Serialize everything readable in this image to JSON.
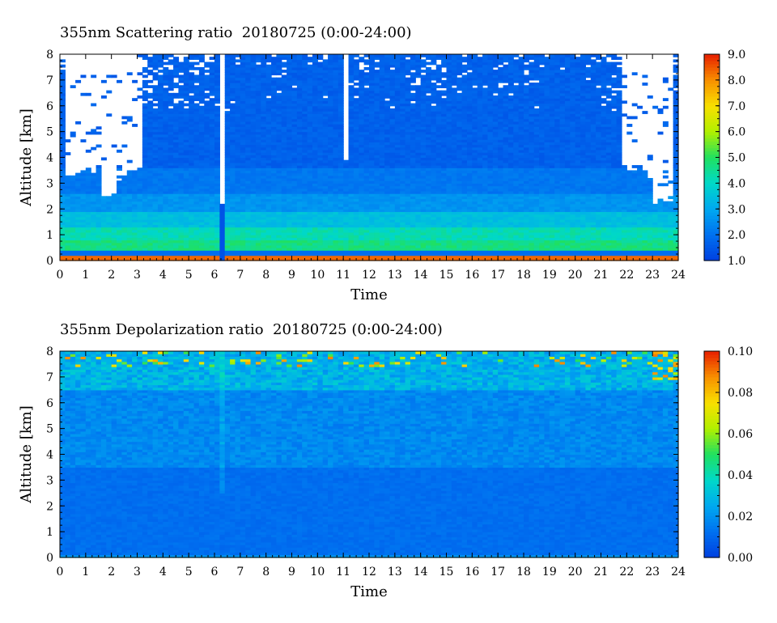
{
  "chart_data": [
    {
      "type": "heatmap",
      "title": "355nm Scattering ratio  20180725 (0:00-24:00)",
      "xlabel": "Time",
      "ylabel": "Altitude [km]",
      "xlim": [
        0,
        24
      ],
      "ylim": [
        0,
        8
      ],
      "xticks": [
        "0",
        "1",
        "2",
        "3",
        "4",
        "5",
        "6",
        "7",
        "8",
        "9",
        "10",
        "11",
        "12",
        "13",
        "14",
        "15",
        "16",
        "17",
        "18",
        "19",
        "20",
        "21",
        "22",
        "23",
        "24"
      ],
      "yticks": [
        "0",
        "1",
        "2",
        "3",
        "4",
        "5",
        "6",
        "7",
        "8"
      ],
      "colorbar": {
        "min": 1.0,
        "max": 9.0,
        "ticks": [
          "1.0",
          "2.0",
          "3.0",
          "4.0",
          "5.0",
          "6.0",
          "7.0",
          "8.0",
          "9.0"
        ]
      },
      "colors": [
        "#0040e0",
        "#0070f0",
        "#00a8f0",
        "#00d8c8",
        "#20e060",
        "#b0f000",
        "#f8e000",
        "#f89000",
        "#e82000"
      ]
    },
    {
      "type": "heatmap",
      "title": "355nm Depolarization ratio  20180725 (0:00-24:00)",
      "xlabel": "Time",
      "ylabel": "Altitude [km]",
      "xlim": [
        0,
        24
      ],
      "ylim": [
        0,
        8
      ],
      "xticks": [
        "0",
        "1",
        "2",
        "3",
        "4",
        "5",
        "6",
        "7",
        "8",
        "9",
        "10",
        "11",
        "12",
        "13",
        "14",
        "15",
        "16",
        "17",
        "18",
        "19",
        "20",
        "21",
        "22",
        "23",
        "24"
      ],
      "yticks": [
        "0",
        "1",
        "2",
        "3",
        "4",
        "5",
        "6",
        "7",
        "8"
      ],
      "colorbar": {
        "min": 0.0,
        "max": 0.1,
        "ticks": [
          "0.00",
          "0.02",
          "0.04",
          "0.06",
          "0.08",
          "0.10"
        ]
      },
      "colors": [
        "#0040e0",
        "#0070f0",
        "#00a8f0",
        "#00d8c8",
        "#20e060",
        "#b0f000",
        "#f8e000",
        "#f89000",
        "#e82000"
      ]
    }
  ]
}
